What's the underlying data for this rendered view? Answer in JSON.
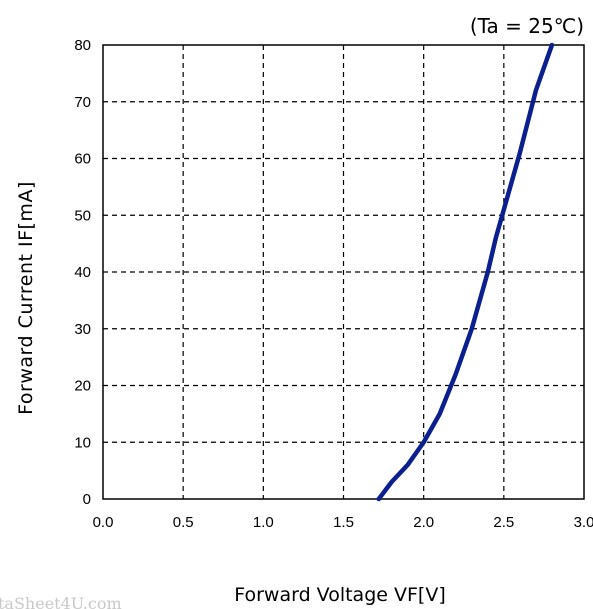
{
  "chart_data": {
    "type": "line",
    "condition": "(Ta = 25℃)",
    "xlabel": "Forward Voltage VF[V]",
    "ylabel": "Forward Current IF[mA]",
    "xlim": [
      0.0,
      3.0
    ],
    "ylim": [
      0,
      80
    ],
    "xticks": [
      "0.0",
      "0.5",
      "1.0",
      "1.5",
      "2.0",
      "2.5",
      "3.0"
    ],
    "yticks": [
      "0",
      "10",
      "20",
      "30",
      "40",
      "50",
      "60",
      "70",
      "80"
    ],
    "grid": true,
    "series": [
      {
        "color": "#0b1f8f",
        "x": [
          1.72,
          1.8,
          1.9,
          2.0,
          2.1,
          2.2,
          2.3,
          2.4,
          2.45,
          2.5,
          2.6,
          2.7,
          2.8
        ],
        "y": [
          0,
          3,
          6,
          10,
          15,
          22,
          30,
          40,
          46,
          51,
          61,
          72,
          80
        ]
      }
    ]
  },
  "watermark": "taSheet4U.com"
}
